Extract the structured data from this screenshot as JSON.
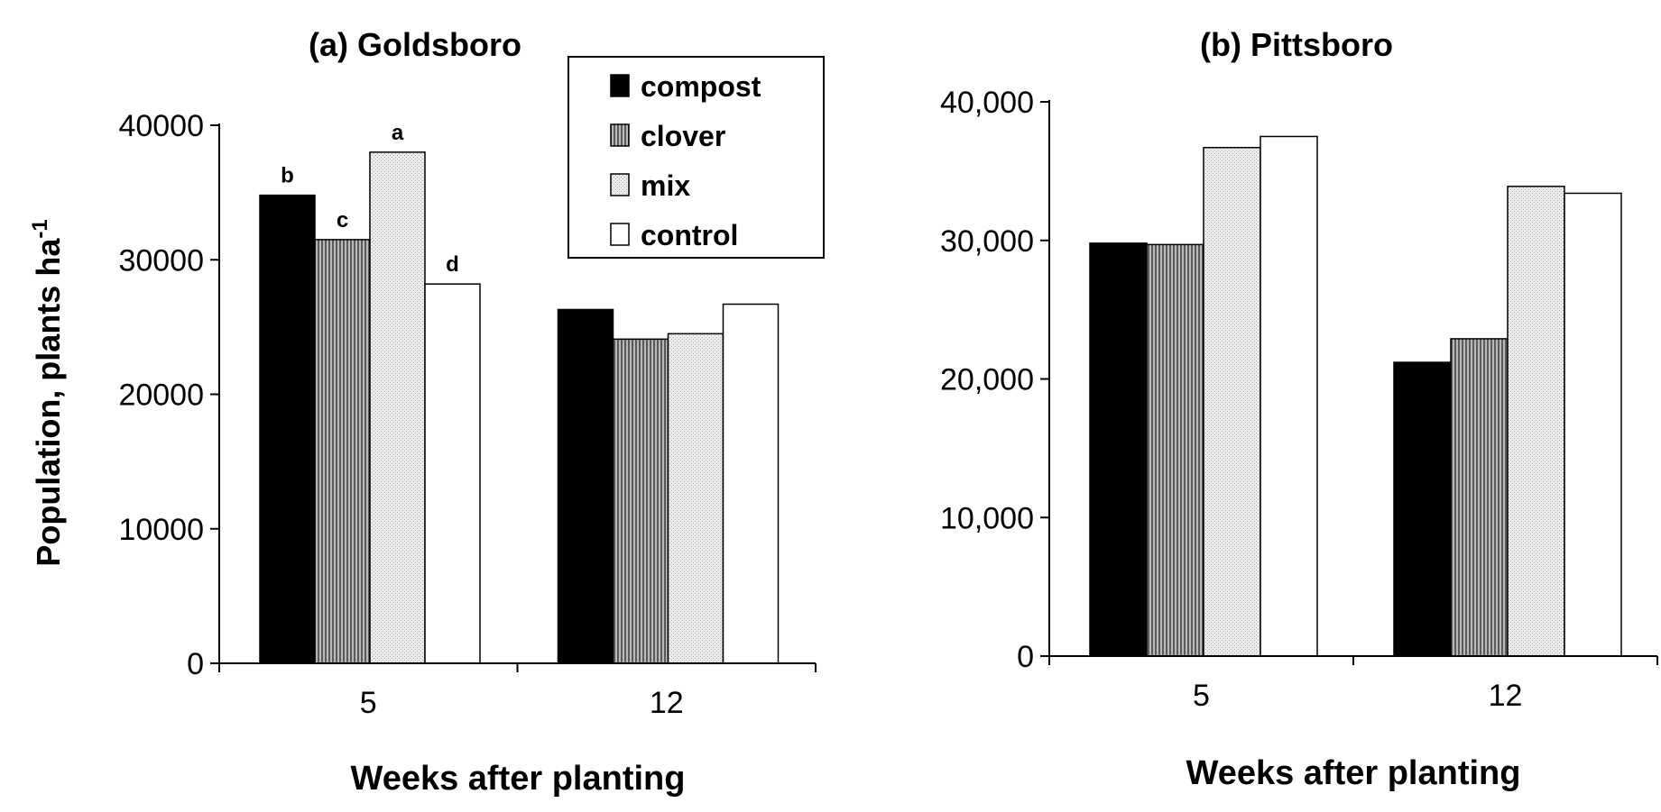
{
  "chart_data": [
    {
      "type": "bar",
      "title": "(a) Goldsboro",
      "xlabel": "Weeks after planting",
      "ylabel": "Population, plants ha",
      "ylabel_sup": "-1",
      "categories": [
        "5",
        "12"
      ],
      "ylim": [
        0,
        40000
      ],
      "yticks": [
        "0",
        "10000",
        "20000",
        "30000",
        "40000"
      ],
      "yticks_values": [
        0,
        10000,
        20000,
        30000,
        40000
      ],
      "series": [
        {
          "name": "compost",
          "values": [
            34800,
            26300
          ]
        },
        {
          "name": "clover",
          "values": [
            31500,
            24100
          ]
        },
        {
          "name": "mix",
          "values": [
            38000,
            24500
          ]
        },
        {
          "name": "control",
          "values": [
            28200,
            26700
          ]
        }
      ],
      "annotations": [
        {
          "category": 0,
          "series": 0,
          "text": "b"
        },
        {
          "category": 0,
          "series": 1,
          "text": "c"
        },
        {
          "category": 0,
          "series": 2,
          "text": "a"
        },
        {
          "category": 0,
          "series": 3,
          "text": "d"
        }
      ],
      "grid": false,
      "legend": {
        "placement": "top-right",
        "entries": [
          "compost",
          "clover",
          "mix",
          "control"
        ]
      }
    },
    {
      "type": "bar",
      "title": "(b) Pittsboro",
      "xlabel": "Weeks after planting",
      "ylabel": "",
      "categories": [
        "5",
        "12"
      ],
      "ylim": [
        0,
        40000
      ],
      "yticks": [
        "0",
        "10,000",
        "20,000",
        "30,000",
        "40,000"
      ],
      "yticks_values": [
        0,
        10000,
        20000,
        30000,
        40000
      ],
      "series": [
        {
          "name": "compost",
          "values": [
            29800,
            21200
          ]
        },
        {
          "name": "clover",
          "values": [
            29700,
            22900
          ]
        },
        {
          "name": "mix",
          "values": [
            36700,
            33900
          ]
        },
        {
          "name": "control",
          "values": [
            37500,
            33400
          ]
        }
      ],
      "grid": false
    }
  ],
  "colors": {
    "compost": "#000000",
    "clover": "#8c8c8c",
    "mix": "#dedede",
    "control": "#ffffff",
    "axis": "#000000"
  }
}
